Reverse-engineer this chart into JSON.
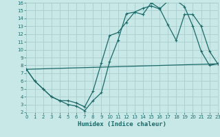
{
  "xlabel": "Humidex (Indice chaleur)",
  "background_color": "#c8e8e8",
  "grid_color": "#a8cccc",
  "line_color": "#1a6868",
  "xlim": [
    0,
    23
  ],
  "ylim": [
    2,
    16
  ],
  "xticks": [
    0,
    1,
    2,
    3,
    4,
    5,
    6,
    7,
    8,
    9,
    10,
    11,
    12,
    13,
    14,
    15,
    16,
    17,
    18,
    19,
    20,
    21,
    22,
    23
  ],
  "yticks": [
    2,
    3,
    4,
    5,
    6,
    7,
    8,
    9,
    10,
    11,
    12,
    13,
    14,
    15,
    16
  ],
  "line1_x": [
    0,
    1,
    2,
    3,
    4,
    5,
    6,
    7,
    8,
    9,
    10,
    11,
    12,
    13,
    14,
    15,
    16,
    17,
    18,
    19,
    20,
    21,
    22,
    23
  ],
  "line1_y": [
    7.5,
    6.0,
    5.0,
    4.0,
    3.5,
    3.0,
    2.8,
    2.2,
    3.5,
    4.5,
    8.5,
    11.2,
    14.6,
    14.8,
    15.3,
    15.6,
    15.2,
    16.2,
    16.3,
    15.5,
    13.0,
    9.8,
    8.0,
    8.2
  ],
  "line2_x": [
    0,
    1,
    2,
    3,
    4,
    5,
    6,
    7,
    8,
    9,
    10,
    11,
    12,
    13,
    14,
    15,
    16,
    17,
    18,
    19,
    20,
    21,
    22,
    23
  ],
  "line2_y": [
    7.5,
    6.0,
    5.0,
    4.0,
    3.5,
    3.5,
    3.2,
    2.7,
    4.7,
    8.3,
    11.8,
    12.2,
    13.5,
    14.8,
    14.5,
    16.0,
    15.3,
    13.2,
    11.2,
    14.5,
    14.5,
    13.0,
    9.8,
    8.2
  ],
  "line3_x": [
    0,
    23
  ],
  "line3_y": [
    7.5,
    8.2
  ]
}
